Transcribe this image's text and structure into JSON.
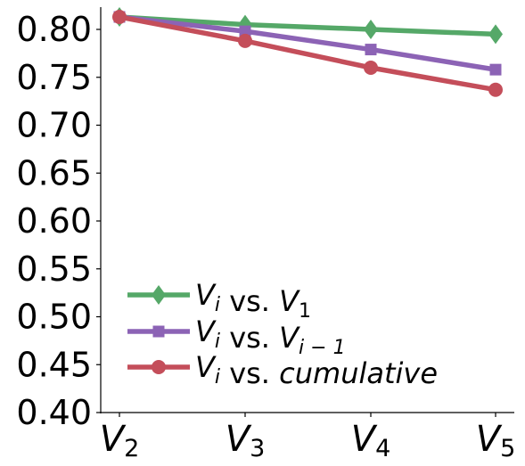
{
  "chart_data": {
    "type": "line",
    "categories": [
      {
        "base": "V",
        "sub": "2"
      },
      {
        "base": "V",
        "sub": "3"
      },
      {
        "base": "V",
        "sub": "4"
      },
      {
        "base": "V",
        "sub": "5"
      }
    ],
    "ylim": [
      0.4,
      0.82
    ],
    "yticks": [
      "0.40",
      "0.45",
      "0.50",
      "0.55",
      "0.60",
      "0.65",
      "0.70",
      "0.75",
      "0.80"
    ],
    "grid": false,
    "legend_position": "bottom-left",
    "series": [
      {
        "name": "V_i vs. V_1",
        "label_parts": [
          {
            "t": "V",
            "i": true
          },
          {
            "t": "i",
            "sub": true,
            "i": true
          },
          {
            "t": " vs. "
          },
          {
            "t": "V",
            "i": true
          },
          {
            "t": "1",
            "sub": true
          }
        ],
        "color": "#55a868",
        "marker": "diamond",
        "values": [
          0.813,
          0.805,
          0.8,
          0.795
        ]
      },
      {
        "name": "V_i vs. V_{i-1}",
        "label_parts": [
          {
            "t": "V",
            "i": true
          },
          {
            "t": "i",
            "sub": true,
            "i": true
          },
          {
            "t": " vs. "
          },
          {
            "t": "V",
            "i": true
          },
          {
            "t": "i − 1",
            "sub": true,
            "i": true
          }
        ],
        "color": "#8c63b5",
        "marker": "square",
        "values": [
          0.813,
          0.798,
          0.779,
          0.758
        ]
      },
      {
        "name": "V_i vs. cumulative",
        "label_parts": [
          {
            "t": "V",
            "i": true
          },
          {
            "t": "i",
            "sub": true,
            "i": true
          },
          {
            "t": " vs. "
          },
          {
            "t": "cumulative",
            "i": true
          }
        ],
        "color": "#c44e5a",
        "marker": "circle",
        "values": [
          0.813,
          0.788,
          0.76,
          0.737
        ]
      }
    ]
  }
}
